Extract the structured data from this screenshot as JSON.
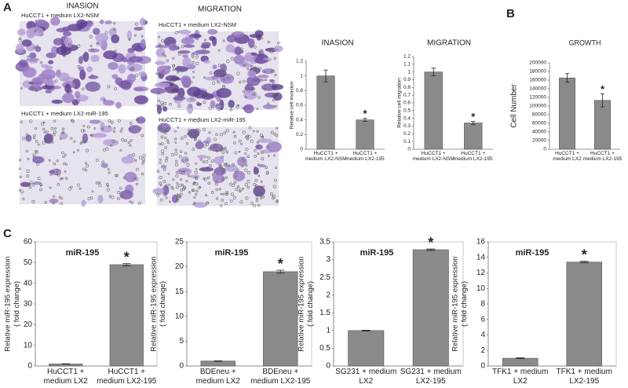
{
  "figure": {
    "panel_labels": [
      "A",
      "B",
      "C"
    ],
    "image_headers": [
      "INASION",
      "MIGRATION"
    ],
    "image_captions": [
      "HuCCT1 + medium LX2-NSM",
      "HuCCT1 + medium LX2-miR-195",
      "HuCCT1 + medium LX2-NSM",
      "HuCCT1 + medium LX2-miR-195"
    ]
  },
  "chart_data": [
    {
      "type": "bar",
      "title": "INASION",
      "ylabel": [
        "Relative cell invasion"
      ],
      "color": "#8a8a8a",
      "categories": [
        "HuCCT1 + medium LX2-NSM",
        "HuCCT1 + medium LX2-195"
      ],
      "values": [
        1,
        0.4
      ],
      "errors": [
        0.08,
        0.02
      ],
      "annotations": [
        null,
        "*"
      ],
      "ylim": [
        0,
        1.2
      ],
      "yticks": [
        0,
        0.2,
        0.4,
        0.6,
        0.8,
        1,
        1.2
      ]
    },
    {
      "type": "bar",
      "title": "MIGRATION",
      "ylabel": [
        "Relative cell migration"
      ],
      "color": "#8a8a8a",
      "categories": [
        "HuCCT1 + medium LX2-NSM",
        "HuCCT1 + medium LX2-195"
      ],
      "values": [
        1,
        0.34
      ],
      "errors": [
        0.05,
        0.02
      ],
      "annotations": [
        null,
        "*"
      ],
      "ylim": [
        0,
        1.2
      ],
      "yticks": [
        0,
        0.1,
        0.2,
        0.3,
        0.4,
        0.5,
        0.6,
        0.7,
        0.8,
        0.9,
        1,
        1.1,
        1.2
      ]
    },
    {
      "type": "bar",
      "title": "GROWTH",
      "ylabel": [
        "Cell Number"
      ],
      "color": "#8a8a8a",
      "categories": [
        "HuCCT1 + medium LX2",
        "HuCCT1 + medium LX2-195"
      ],
      "values": [
        165000,
        113000
      ],
      "errors": [
        10000,
        15000
      ],
      "annotations": [
        null,
        "*"
      ],
      "ylim": [
        0,
        200000
      ],
      "yticks": [
        0,
        20000,
        40000,
        60000,
        80000,
        100000,
        120000,
        140000,
        160000,
        180000,
        200000
      ]
    },
    {
      "type": "bar",
      "title": "miR-195",
      "ylabel": [
        "Relative miR-195 expression",
        "( fold change)"
      ],
      "color": "#8a8a8a",
      "categories": [
        "HuCCT1 + medium LX2",
        "HuCCT1 + medium LX2-195"
      ],
      "values": [
        1,
        49
      ],
      "errors": [
        0.1,
        0.5
      ],
      "annotations": [
        null,
        "*"
      ],
      "ylim": [
        0,
        60
      ],
      "yticks": [
        0,
        10,
        20,
        30,
        40,
        50,
        60
      ]
    },
    {
      "type": "bar",
      "title": "miR-195",
      "ylabel": [
        "Relative miR-195 expression",
        "( fold change)"
      ],
      "color": "#8a8a8a",
      "categories": [
        "BDEneu + medium LX2",
        "BDEneu + medium LX2-195"
      ],
      "values": [
        1,
        19
      ],
      "errors": [
        0.05,
        0.3
      ],
      "annotations": [
        null,
        "*"
      ],
      "ylim": [
        0,
        25
      ],
      "yticks": [
        0,
        5,
        10,
        15,
        20,
        25
      ]
    },
    {
      "type": "bar",
      "title": "miR-195",
      "ylabel": [
        "Relative miR-195 expression",
        "( fold change)"
      ],
      "color": "#8a8a8a",
      "categories": [
        "SG231 + medium LX2",
        "SG231 + medium LX2-195"
      ],
      "values": [
        1,
        3.28
      ],
      "errors": [
        0.01,
        0.02
      ],
      "annotations": [
        null,
        "*"
      ],
      "ylim": [
        0,
        3.5
      ],
      "yticks": [
        0,
        0.5,
        1,
        1.5,
        2,
        2.5,
        3,
        3.5
      ]
    },
    {
      "type": "bar",
      "title": "miR-195",
      "ylabel": [
        "Relative miR-195 expression",
        "( fold change)"
      ],
      "color": "#8a8a8a",
      "categories": [
        "TFK1 + medium LX2",
        "TFK1 + medium LX2-195"
      ],
      "values": [
        1,
        13.4
      ],
      "errors": [
        0.05,
        0.1
      ],
      "annotations": [
        null,
        "*"
      ],
      "ylim": [
        0,
        16
      ],
      "yticks": [
        0,
        2,
        4,
        6,
        8,
        10,
        12,
        14,
        16
      ]
    }
  ]
}
